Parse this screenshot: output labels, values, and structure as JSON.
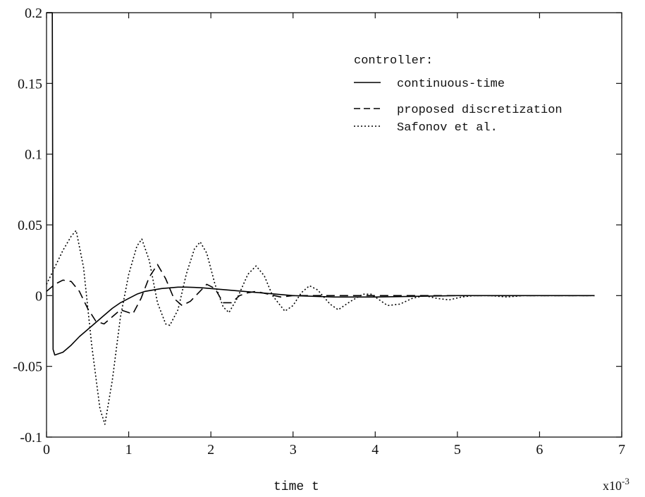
{
  "chart_data": {
    "type": "line",
    "title": "",
    "xlabel": "time t",
    "ylabel": "",
    "x_multiplier_label": "x10",
    "x_multiplier_exponent": "-3",
    "xlim": [
      0,
      7
    ],
    "ylim": [
      -0.1,
      0.2
    ],
    "x_ticks": [
      0,
      1,
      2,
      3,
      4,
      5,
      6,
      7
    ],
    "x_tick_labels": [
      "0",
      "1",
      "2",
      "3",
      "4",
      "5",
      "6",
      "7"
    ],
    "y_ticks": [
      -0.1,
      -0.05,
      0,
      0.05,
      0.1,
      0.15,
      0.2
    ],
    "y_tick_labels": [
      "-0.1",
      "-0.05",
      "0",
      "0.05",
      "0.1",
      "0.15",
      "0.2"
    ],
    "grid": false,
    "legend": {
      "title": "controller:",
      "placement": "top-right",
      "entries": [
        "continuous-time",
        "proposed discretization",
        "Safonov et al."
      ]
    },
    "series": [
      {
        "name": "continuous-time",
        "style": "solid",
        "color": "#000000",
        "points": [
          [
            0.0,
            0.2
          ],
          [
            0.07,
            0.2
          ],
          [
            0.08,
            -0.038
          ],
          [
            0.1,
            -0.042
          ],
          [
            0.2,
            -0.04
          ],
          [
            0.3,
            -0.035
          ],
          [
            0.4,
            -0.029
          ],
          [
            0.5,
            -0.024
          ],
          [
            0.6,
            -0.019
          ],
          [
            0.7,
            -0.014
          ],
          [
            0.8,
            -0.009
          ],
          [
            0.9,
            -0.005
          ],
          [
            1.0,
            -0.002
          ],
          [
            1.1,
            0.001
          ],
          [
            1.2,
            0.003
          ],
          [
            1.3,
            0.004
          ],
          [
            1.4,
            0.005
          ],
          [
            1.5,
            0.0055
          ],
          [
            1.6,
            0.006
          ],
          [
            1.7,
            0.006
          ],
          [
            1.8,
            0.0058
          ],
          [
            1.9,
            0.0055
          ],
          [
            2.0,
            0.005
          ],
          [
            2.2,
            0.004
          ],
          [
            2.4,
            0.003
          ],
          [
            2.6,
            0.002
          ],
          [
            2.8,
            0.001
          ],
          [
            3.0,
            0.0
          ],
          [
            3.5,
            -0.001
          ],
          [
            4.0,
            -0.001
          ],
          [
            5.0,
            0.0
          ],
          [
            6.0,
            0.0
          ],
          [
            6.67,
            0.0
          ]
        ]
      },
      {
        "name": "proposed discretization",
        "style": "dashed",
        "color": "#000000",
        "points": [
          [
            0.0,
            0.003
          ],
          [
            0.1,
            0.008
          ],
          [
            0.2,
            0.011
          ],
          [
            0.3,
            0.01
          ],
          [
            0.4,
            0.003
          ],
          [
            0.5,
            -0.009
          ],
          [
            0.6,
            -0.018
          ],
          [
            0.7,
            -0.02
          ],
          [
            0.8,
            -0.015
          ],
          [
            0.9,
            -0.01
          ],
          [
            1.0,
            -0.012
          ],
          [
            1.05,
            -0.013
          ],
          [
            1.15,
            -0.002
          ],
          [
            1.25,
            0.013
          ],
          [
            1.35,
            0.022
          ],
          [
            1.45,
            0.012
          ],
          [
            1.55,
            -0.002
          ],
          [
            1.65,
            -0.007
          ],
          [
            1.75,
            -0.004
          ],
          [
            1.85,
            0.002
          ],
          [
            1.95,
            0.008
          ],
          [
            2.05,
            0.005
          ],
          [
            2.15,
            -0.005
          ],
          [
            2.25,
            -0.005
          ],
          [
            2.35,
            0.0
          ],
          [
            2.45,
            0.002
          ],
          [
            2.55,
            0.003
          ],
          [
            2.7,
            0.001
          ],
          [
            2.85,
            -0.001
          ],
          [
            3.0,
            0.0
          ],
          [
            3.5,
            0.0
          ],
          [
            4.0,
            0.0
          ],
          [
            5.0,
            0.0
          ],
          [
            6.0,
            0.0
          ],
          [
            6.67,
            0.0
          ]
        ]
      },
      {
        "name": "Safonov et al.",
        "style": "dotted",
        "color": "#000000",
        "points": [
          [
            0.0,
            0.008
          ],
          [
            0.1,
            0.02
          ],
          [
            0.2,
            0.032
          ],
          [
            0.3,
            0.042
          ],
          [
            0.36,
            0.046
          ],
          [
            0.45,
            0.02
          ],
          [
            0.55,
            -0.035
          ],
          [
            0.65,
            -0.08
          ],
          [
            0.71,
            -0.091
          ],
          [
            0.8,
            -0.06
          ],
          [
            0.9,
            -0.015
          ],
          [
            1.0,
            0.015
          ],
          [
            1.1,
            0.035
          ],
          [
            1.16,
            0.04
          ],
          [
            1.25,
            0.025
          ],
          [
            1.35,
            -0.005
          ],
          [
            1.45,
            -0.02
          ],
          [
            1.5,
            -0.021
          ],
          [
            1.6,
            -0.01
          ],
          [
            1.7,
            0.015
          ],
          [
            1.8,
            0.033
          ],
          [
            1.87,
            0.038
          ],
          [
            1.95,
            0.03
          ],
          [
            2.05,
            0.008
          ],
          [
            2.15,
            -0.008
          ],
          [
            2.22,
            -0.012
          ],
          [
            2.32,
            -0.002
          ],
          [
            2.45,
            0.015
          ],
          [
            2.55,
            0.021
          ],
          [
            2.65,
            0.014
          ],
          [
            2.75,
            0.0
          ],
          [
            2.9,
            -0.011
          ],
          [
            3.0,
            -0.007
          ],
          [
            3.1,
            0.002
          ],
          [
            3.2,
            0.007
          ],
          [
            3.3,
            0.004
          ],
          [
            3.45,
            -0.006
          ],
          [
            3.55,
            -0.01
          ],
          [
            3.7,
            -0.004
          ],
          [
            3.85,
            0.001
          ],
          [
            3.95,
            0.001
          ],
          [
            4.05,
            -0.003
          ],
          [
            4.15,
            -0.007
          ],
          [
            4.3,
            -0.006
          ],
          [
            4.45,
            -0.002
          ],
          [
            4.6,
            0.0
          ],
          [
            4.75,
            -0.002
          ],
          [
            4.9,
            -0.003
          ],
          [
            5.05,
            -0.001
          ],
          [
            5.2,
            0.0
          ],
          [
            5.4,
            0.0
          ],
          [
            5.6,
            -0.001
          ],
          [
            5.8,
            0.0
          ],
          [
            6.0,
            0.0
          ],
          [
            6.3,
            0.0
          ],
          [
            6.67,
            0.0
          ]
        ]
      }
    ]
  }
}
